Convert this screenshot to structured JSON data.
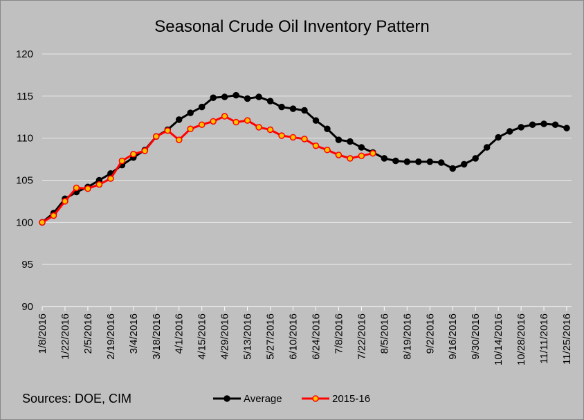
{
  "chart_data": {
    "type": "line",
    "title": "Seasonal Crude Oil Inventory Pattern",
    "annotations": [
      "Sources:  DOE, CIM"
    ],
    "categories": [
      "1/8/2016",
      null,
      "1/22/2016",
      null,
      "2/5/2016",
      null,
      "2/19/2016",
      null,
      "3/4/2016",
      null,
      "3/18/2016",
      null,
      "4/1/2016",
      null,
      "4/15/2016",
      null,
      "4/29/2016",
      null,
      "5/13/2016",
      null,
      "5/27/2016",
      null,
      "6/10/2016",
      null,
      "6/24/2016",
      null,
      "7/8/2016",
      null,
      "7/22/2016",
      null,
      "8/5/2016",
      null,
      "8/19/2016",
      null,
      "9/2/2016",
      null,
      "9/16/2016",
      null,
      "9/30/2016",
      null,
      "10/14/2016",
      null,
      "10/28/2016",
      null,
      "11/11/2016",
      null,
      "11/25/2016"
    ],
    "series": [
      {
        "name": "Average",
        "color": "#000000",
        "marker_color": "#000000",
        "values": [
          100,
          101.1,
          102.8,
          103.6,
          104.2,
          105.0,
          105.8,
          106.8,
          107.7,
          108.6,
          110.2,
          111.0,
          112.2,
          113.0,
          113.7,
          114.8,
          114.9,
          115.1,
          114.7,
          114.9,
          114.4,
          113.7,
          113.5,
          113.3,
          112.1,
          111.1,
          109.8,
          109.6,
          108.9,
          108.3,
          107.6,
          107.3,
          107.2,
          107.2,
          107.2,
          107.1,
          106.4,
          106.9,
          107.6,
          108.9,
          110.1,
          110.8,
          111.3,
          111.6,
          111.7,
          111.6,
          111.2
        ]
      },
      {
        "name": "2015-16",
        "color": "#ff0000",
        "marker_color": "#ffc000",
        "values": [
          100,
          100.8,
          102.5,
          104.1,
          104.0,
          104.5,
          105.2,
          107.3,
          108.1,
          108.5,
          110.2,
          110.9,
          109.8,
          111.1,
          111.6,
          112.0,
          112.6,
          111.9,
          112.1,
          111.3,
          111.0,
          110.3,
          110.1,
          109.9,
          109.1,
          108.6,
          108.0,
          107.6,
          107.9,
          108.2,
          null,
          null,
          null,
          null,
          null,
          null,
          null,
          null,
          null,
          null,
          null,
          null,
          null,
          null,
          null,
          null,
          null
        ]
      }
    ],
    "ylim": [
      90,
      120
    ],
    "yticks": [
      90,
      95,
      100,
      105,
      110,
      115,
      120
    ],
    "grid": true,
    "legend": "bottom"
  }
}
